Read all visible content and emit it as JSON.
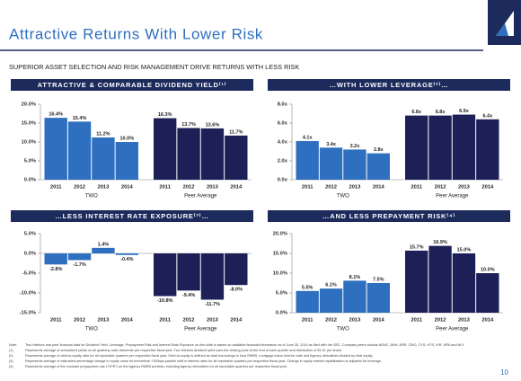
{
  "header": {
    "title": "Attractive Returns With Lower Risk",
    "subtitle": "SUPERIOR ASSET SELECTION AND RISK MANAGEMENT DRIVE RETURNS WITH LESS RISK"
  },
  "chart_data": [
    {
      "type": "bar",
      "title": "ATTRACTIVE & COMPARABLE DIVIDEND YIELD⁽¹⁾",
      "categories": [
        "2011",
        "2012",
        "2013",
        "2014"
      ],
      "series": [
        {
          "name": "TWO",
          "color": "#2e6fbf",
          "values": [
            16.4,
            15.4,
            11.2,
            10.0
          ],
          "value_labels": [
            "16.4%",
            "15.4%",
            "11.2%",
            "10.0%"
          ]
        },
        {
          "name": "Peer Average",
          "color": "#1c2057",
          "values": [
            16.3,
            13.7,
            13.6,
            11.7
          ],
          "value_labels": [
            "16.3%",
            "13.7%",
            "13.6%",
            "11.7%"
          ]
        }
      ],
      "ylim": [
        0,
        20
      ],
      "yticks": [
        {
          "value": 0,
          "label": "0.0%"
        },
        {
          "value": 5,
          "label": "5.0%"
        },
        {
          "value": 10,
          "label": "10.0%"
        },
        {
          "value": 15,
          "label": "15.0%"
        },
        {
          "value": 20,
          "label": "20.0%"
        }
      ]
    },
    {
      "type": "bar",
      "title": "…WITH LOWER LEVERAGE⁽²⁾…",
      "categories": [
        "2011",
        "2012",
        "2013",
        "2014"
      ],
      "series": [
        {
          "name": "TWO",
          "color": "#2e6fbf",
          "values": [
            4.1,
            3.4,
            3.2,
            2.8
          ],
          "value_labels": [
            "4.1x",
            "3.4x",
            "3.2x",
            "2.8x"
          ]
        },
        {
          "name": "Peer Average",
          "color": "#1c2057",
          "values": [
            6.8,
            6.8,
            6.9,
            6.4
          ],
          "value_labels": [
            "6.8x",
            "6.8x",
            "6.9x",
            "6.4x"
          ]
        }
      ],
      "ylim": [
        0,
        8
      ],
      "yticks": [
        {
          "value": 0,
          "label": "0.0x"
        },
        {
          "value": 2,
          "label": "2.0x"
        },
        {
          "value": 4,
          "label": "4.0x"
        },
        {
          "value": 6,
          "label": "6.0x"
        },
        {
          "value": 8,
          "label": "8.0x"
        }
      ]
    },
    {
      "type": "bar",
      "title": "…LESS INTEREST RATE EXPOSURE⁽³⁾…",
      "categories": [
        "2011",
        "2012",
        "2013",
        "2014"
      ],
      "series": [
        {
          "name": "TWO",
          "color": "#2e6fbf",
          "values": [
            -2.8,
            -1.7,
            1.4,
            -0.4
          ],
          "value_labels": [
            "-2.8%",
            "-1.7%",
            "1.4%",
            "-0.4%"
          ]
        },
        {
          "name": "Peer Average",
          "color": "#1c2057",
          "values": [
            -10.8,
            -9.4,
            -11.7,
            -8.0
          ],
          "value_labels": [
            "-10.8%",
            "-9.4%",
            "-11.7%",
            "-8.0%"
          ]
        }
      ],
      "ylim": [
        -15,
        5
      ],
      "yticks": [
        {
          "value": -15,
          "label": "-15.0%"
        },
        {
          "value": -10,
          "label": "-10.0%"
        },
        {
          "value": -5,
          "label": "-5.0%"
        },
        {
          "value": 0,
          "label": "0.0%"
        },
        {
          "value": 5,
          "label": "5.0%"
        }
      ]
    },
    {
      "type": "bar",
      "title": "…AND LESS PREPAYMENT RISK⁽⁴⁾",
      "categories": [
        "2011",
        "2012",
        "2013",
        "2014"
      ],
      "series": [
        {
          "name": "TWO",
          "color": "#2e6fbf",
          "values": [
            5.5,
            6.1,
            8.1,
            7.5
          ],
          "value_labels": [
            "5.5%",
            "6.1%",
            "8.1%",
            "7.5%"
          ]
        },
        {
          "name": "Peer Average",
          "color": "#1c2057",
          "values": [
            15.7,
            16.9,
            15.0,
            10.0
          ],
          "value_labels": [
            "15.7%",
            "16.9%",
            "15.0%",
            "10.0%"
          ]
        }
      ],
      "ylim": [
        0,
        20
      ],
      "yticks": [
        {
          "value": 0,
          "label": "0.0%"
        },
        {
          "value": 5,
          "label": "5.0%"
        },
        {
          "value": 10,
          "label": "10.0%"
        },
        {
          "value": 15,
          "label": "15.0%"
        },
        {
          "value": 20,
          "label": "20.0%"
        }
      ]
    }
  ],
  "notes": [
    {
      "marker": "Note:",
      "text": "Two Harbors and peer financial data for Dividend Yield, Leverage, Prepayment Risk and Interest Rate Exposure on this slide is based on available financial information as of June 30, 2014 as filed with the SEC. Company peers include AGNC, ANH, ARR, CMO, CYS, HTS, IVR, MFA and NLY."
    },
    {
      "marker": "(1)",
      "text": "Represents average of annualized yields on all quarterly cash dividends per respective fiscal year. Two Harbors dividend yield uses the closing price at the end of each quarter and distribution of $1.01 per share."
    },
    {
      "marker": "(2)",
      "text": "Represents average of debt-to-equity ratio for all reportable quarters per respective fiscal year. Debt-to-equity is defined as total borrowings to fund RMBS, mortgage loans held-for-sale and Agency derivatives divided by total equity."
    },
    {
      "marker": "(3)",
      "text": "Represents average of estimated percentage change in equity value for theoretical +100bps parallel shift in interest rates for all reportable quarters per respective fiscal year. Change in equity market capitalization is adjusted for leverage."
    },
    {
      "marker": "(4)",
      "text": "Represents average of the constant prepayment rate (“CPR”) on the Agency RMBS portfolio, including Agency derivatives for all reportable quarters per respective fiscal year."
    }
  ],
  "page_number": "10"
}
